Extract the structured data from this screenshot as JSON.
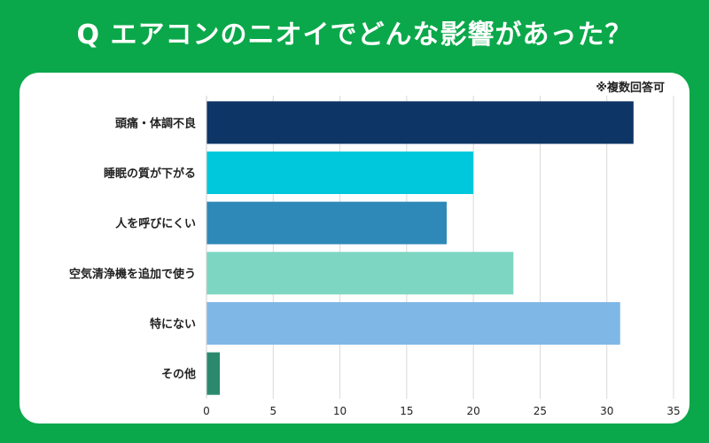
{
  "header": {
    "title": "Q エアコンのニオイでどんな影響があった？"
  },
  "note": "※複数回答可",
  "chart_data": {
    "type": "bar",
    "orientation": "horizontal",
    "title": "Q エアコンのニオイでどんな影響があった？",
    "categories": [
      "頭痛・体調不良",
      "睡眠の質が下がる",
      "人を呼びにくい",
      "空気清浄機を追加で使う",
      "特にない",
      "その他"
    ],
    "values": [
      32,
      20,
      18,
      23,
      31,
      1
    ],
    "colors": [
      "#0d3566",
      "#00c8dc",
      "#2e89b8",
      "#7dd6c2",
      "#7fb8e6",
      "#2b8a6e"
    ],
    "xlim": [
      0,
      35
    ],
    "xticks": [
      0,
      5,
      10,
      15,
      20,
      25,
      30,
      35
    ],
    "xlabel": "",
    "ylabel": "",
    "grid": true,
    "legend": "none"
  }
}
